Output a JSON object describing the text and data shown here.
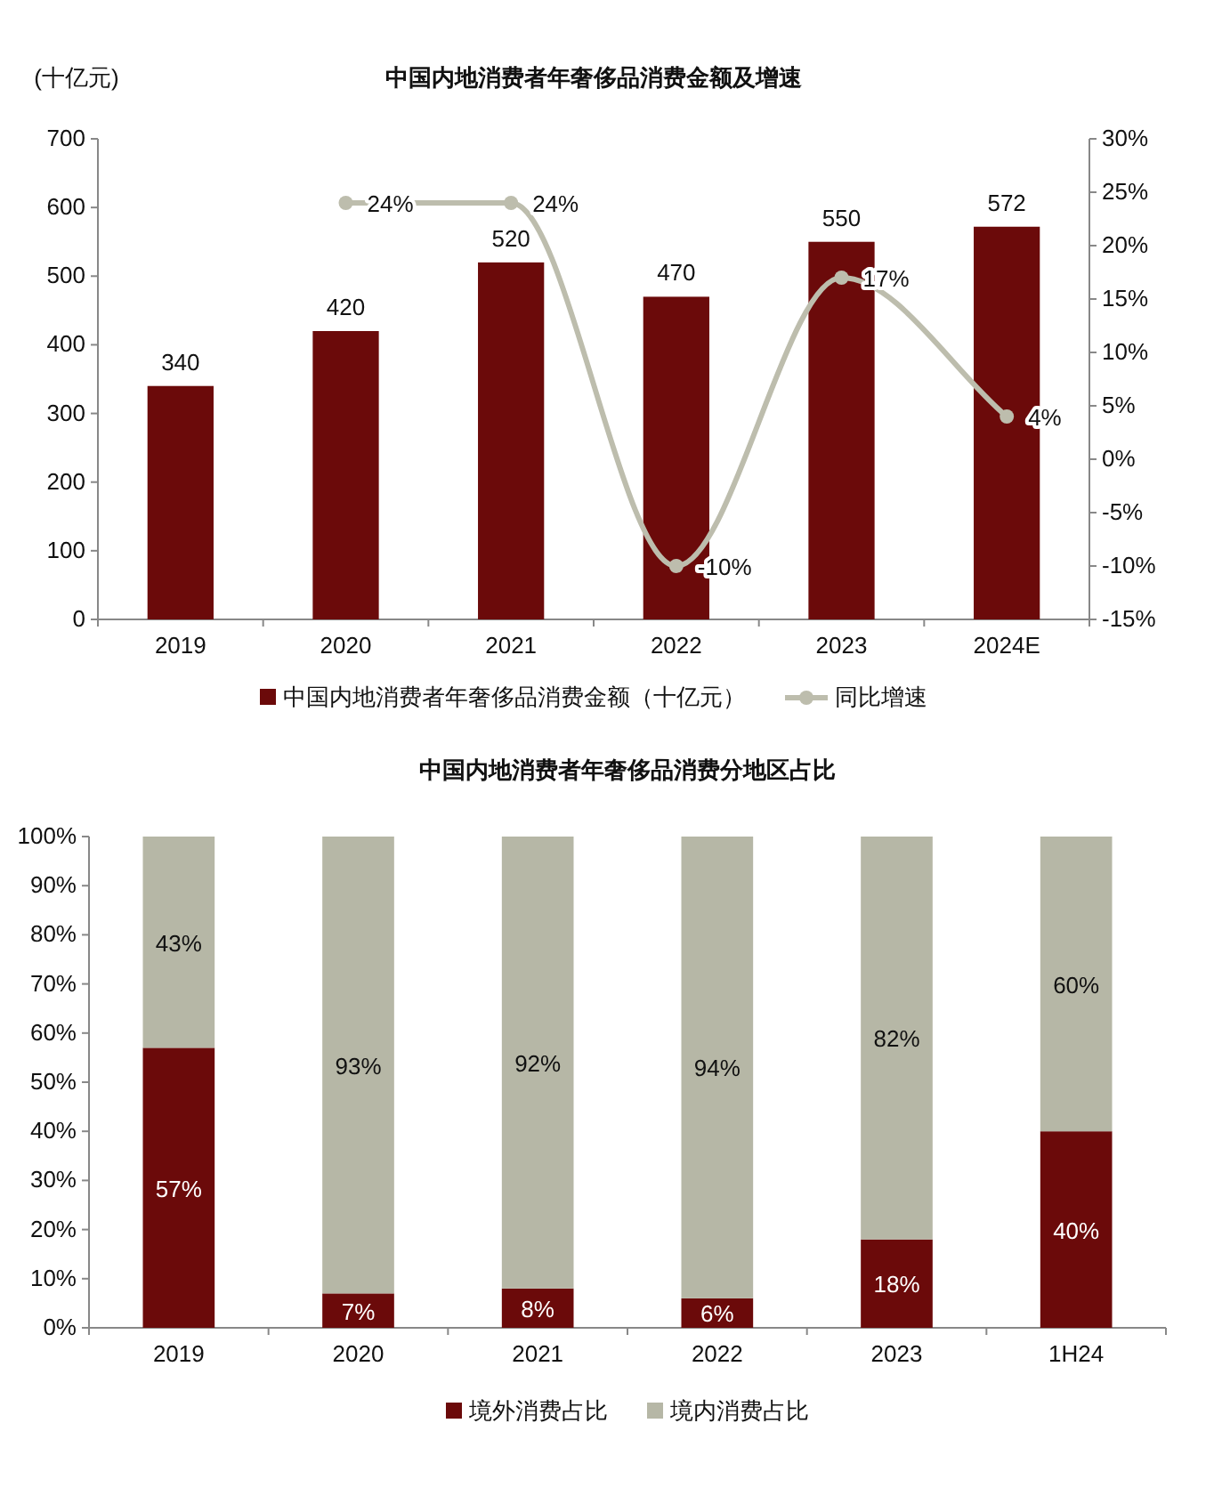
{
  "chart_data": [
    {
      "type": "bar",
      "title": "中国内地消费者年奢侈品消费金额及增速",
      "ylabel": "(十亿元)",
      "categories": [
        "2019",
        "2020",
        "2021",
        "2022",
        "2023",
        "2024E"
      ],
      "series": [
        {
          "name": "中国内地消费者年奢侈品消费金额（十亿元）",
          "color": "#6b0a0a",
          "values": [
            340,
            420,
            520,
            470,
            550,
            572
          ],
          "value_labels": [
            "340",
            "420",
            "520",
            "470",
            "550",
            "572"
          ]
        },
        {
          "name": "同比增速",
          "type": "line",
          "axis": "y2",
          "color": "#bdbdad",
          "values": [
            null,
            24,
            24,
            -10,
            17,
            4
          ],
          "value_labels": [
            null,
            "24%",
            "24%",
            "-10%",
            "17%",
            "4%"
          ]
        }
      ],
      "ylim": [
        0,
        700
      ],
      "yticks": [
        0,
        100,
        200,
        300,
        400,
        500,
        600,
        700
      ],
      "y2lim": [
        -15,
        30
      ],
      "y2ticks": [
        {
          "value": -15,
          "label": "-15%"
        },
        {
          "value": -10,
          "label": "-10%"
        },
        {
          "value": -5,
          "label": "-5%"
        },
        {
          "value": 0,
          "label": "0%"
        },
        {
          "value": 5,
          "label": "5%"
        },
        {
          "value": 10,
          "label": "10%"
        },
        {
          "value": 15,
          "label": "15%"
        },
        {
          "value": 20,
          "label": "20%"
        },
        {
          "value": 25,
          "label": "25%"
        },
        {
          "value": 30,
          "label": "30%"
        }
      ],
      "marker": "circle",
      "legend": "bottom"
    },
    {
      "type": "bar",
      "title": "中国内地消费者年奢侈品消费分地区占比",
      "categories": [
        "2019",
        "2020",
        "2021",
        "2022",
        "2023",
        "1H24"
      ],
      "stacked": true,
      "series": [
        {
          "name": "境外消费占比",
          "color": "#6b0a0a",
          "values": [
            57,
            7,
            8,
            6,
            18,
            40
          ],
          "value_labels": [
            "57%",
            "7%",
            "8%",
            "6%",
            "18%",
            "40%"
          ]
        },
        {
          "name": "境内消费占比",
          "color": "#b6b7a6",
          "values": [
            43,
            93,
            92,
            94,
            82,
            60
          ],
          "value_labels": [
            "43%",
            "93%",
            "92%",
            "94%",
            "82%",
            "60%"
          ]
        }
      ],
      "ylim": [
        0,
        100
      ],
      "yticks": [
        {
          "value": 0,
          "label": "0%"
        },
        {
          "value": 10,
          "label": "10%"
        },
        {
          "value": 20,
          "label": "20%"
        },
        {
          "value": 30,
          "label": "30%"
        },
        {
          "value": 40,
          "label": "40%"
        },
        {
          "value": 50,
          "label": "50%"
        },
        {
          "value": 60,
          "label": "60%"
        },
        {
          "value": 70,
          "label": "70%"
        },
        {
          "value": 80,
          "label": "80%"
        },
        {
          "value": 90,
          "label": "90%"
        },
        {
          "value": 100,
          "label": "100%"
        }
      ],
      "legend": "bottom"
    }
  ]
}
